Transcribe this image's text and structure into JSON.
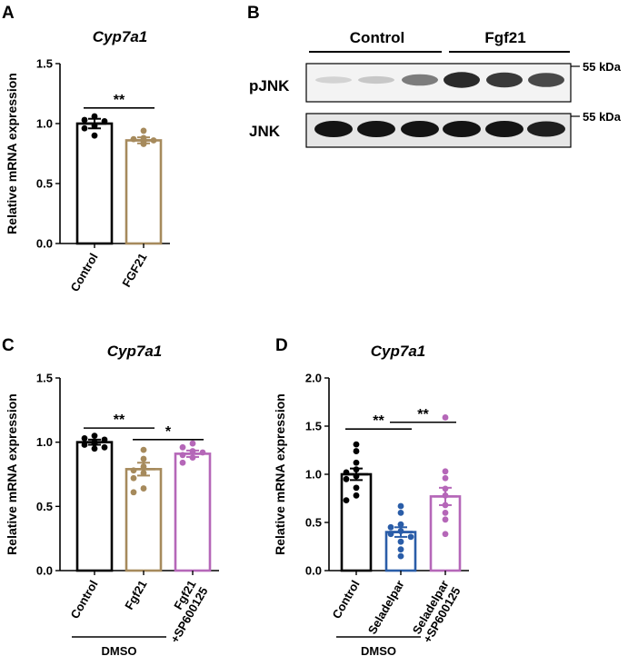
{
  "panels": [
    {
      "id": "A",
      "label": "A"
    },
    {
      "id": "B",
      "label": "B"
    },
    {
      "id": "C",
      "label": "C"
    },
    {
      "id": "D",
      "label": "D"
    }
  ],
  "colors": {
    "control": "#000000",
    "fgf21": "#a68a5c",
    "sp600125": "#b567b8",
    "seladelpar": "#2a5da8"
  },
  "blot": {
    "group_labels": [
      "Control",
      "Fgf21"
    ],
    "row_labels": [
      "pJNK",
      "JNK"
    ],
    "size_marker": "55 kDa",
    "pjnk_intensity": [
      0.12,
      0.18,
      0.55,
      0.95,
      0.88,
      0.8
    ],
    "jnk_intensity": [
      1.0,
      1.0,
      1.0,
      1.0,
      1.0,
      0.95
    ]
  },
  "chart_data": [
    {
      "panel": "A",
      "type": "bar",
      "title": "Cyp7a1",
      "ylabel": "Relative mRNA expression",
      "ylim": [
        0,
        1.5
      ],
      "yticks": [
        "0.0",
        "0.5",
        "1.0",
        "1.5"
      ],
      "categories": [
        "Control",
        "FGF21"
      ],
      "values": [
        1.0,
        0.86
      ],
      "sem": [
        0.04,
        0.025
      ],
      "bar_colors": [
        "#000000",
        "#a68a5c"
      ],
      "points": [
        [
          1.06,
          1.03,
          1.02,
          0.98,
          0.96,
          0.9
        ],
        [
          0.94,
          0.88,
          0.87,
          0.86,
          0.85,
          0.83
        ]
      ],
      "significance": [
        {
          "from": 0,
          "to": 1,
          "label": "**",
          "y": 1.13
        }
      ]
    },
    {
      "panel": "C",
      "type": "bar",
      "title": "Cyp7a1",
      "ylabel": "Relative mRNA expression",
      "ylim": [
        0,
        1.5
      ],
      "yticks": [
        "0.0",
        "0.5",
        "1.0",
        "1.5"
      ],
      "categories": [
        "Control",
        "Fgf21",
        "Fgf21\n+SP600125"
      ],
      "values": [
        1.0,
        0.79,
        0.91
      ],
      "sem": [
        0.02,
        0.05,
        0.025
      ],
      "bar_colors": [
        "#000000",
        "#a68a5c",
        "#b567b8"
      ],
      "points": [
        [
          1.05,
          1.03,
          1.02,
          1.0,
          0.99,
          0.98,
          0.96,
          0.95
        ],
        [
          0.94,
          0.87,
          0.81,
          0.78,
          0.76,
          0.72,
          0.64,
          0.61
        ],
        [
          0.99,
          0.96,
          0.93,
          0.92,
          0.9,
          0.88,
          0.84
        ]
      ],
      "significance": [
        {
          "from": 0,
          "to": 1,
          "label": "**",
          "y": 1.11
        },
        {
          "from": 1,
          "to": 2,
          "label": "*",
          "y": 1.02
        }
      ],
      "group_bracket": {
        "label": "DMSO",
        "from": 0,
        "to": 1
      }
    },
    {
      "panel": "D",
      "type": "bar",
      "title": "Cyp7a1",
      "ylabel": "Relative mRNA expression",
      "ylim": [
        0,
        2.0
      ],
      "yticks": [
        "0.0",
        "0.5",
        "1.0",
        "1.5",
        "2.0"
      ],
      "categories": [
        "Control",
        "Seladelpar",
        "Seladelpar\n+SP600125"
      ],
      "values": [
        1.0,
        0.4,
        0.77
      ],
      "sem": [
        0.06,
        0.05,
        0.09
      ],
      "bar_colors": [
        "#000000",
        "#2a5da8",
        "#b567b8"
      ],
      "points": [
        [
          1.31,
          1.24,
          1.12,
          1.05,
          1.02,
          0.98,
          0.95,
          0.86,
          0.78,
          0.73
        ],
        [
          0.67,
          0.6,
          0.48,
          0.45,
          0.41,
          0.38,
          0.35,
          0.3,
          0.22,
          0.15
        ],
        [
          1.59,
          1.03,
          0.96,
          0.85,
          0.78,
          0.68,
          0.6,
          0.53,
          0.38
        ]
      ],
      "significance": [
        {
          "from": 0,
          "to": 1,
          "label": "**",
          "y": 1.47
        },
        {
          "from": 1,
          "to": 2,
          "label": "**",
          "y": 1.54
        }
      ],
      "group_bracket": {
        "label": "DMSO",
        "from": 0,
        "to": 1
      }
    }
  ]
}
